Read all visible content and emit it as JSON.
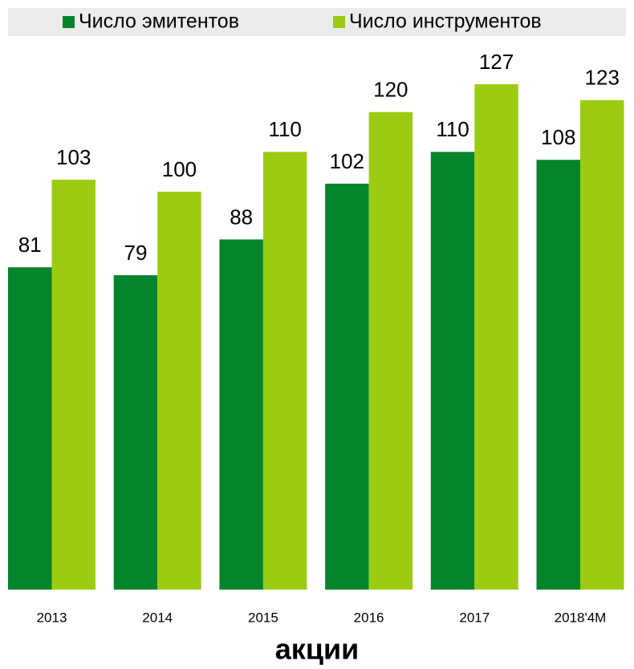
{
  "chart_data": {
    "type": "bar",
    "title": "акции",
    "categories": [
      "2013",
      "2014",
      "2015",
      "2016",
      "2017",
      "2018'4M"
    ],
    "series": [
      {
        "name": "Число эмитентов",
        "color": "#05852b",
        "values": [
          81,
          79,
          88,
          102,
          110,
          108
        ]
      },
      {
        "name": "Число инструментов",
        "color": "#9ccc12",
        "values": [
          103,
          100,
          110,
          120,
          127,
          123
        ]
      }
    ],
    "legend": "top"
  }
}
